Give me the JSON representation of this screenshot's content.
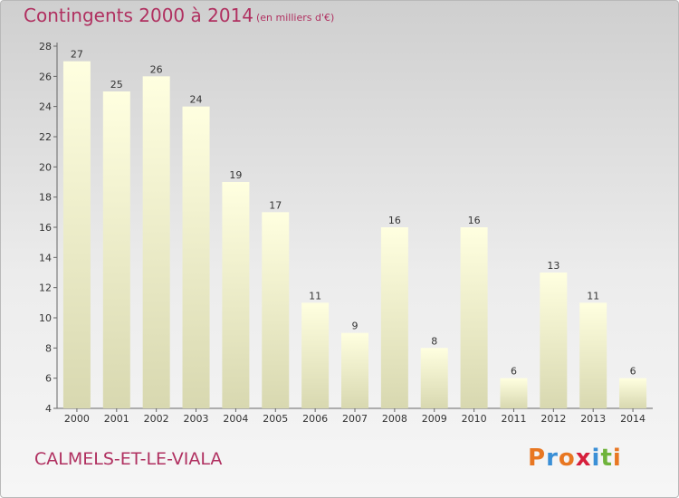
{
  "header": {
    "title": "Contingents 2000 à 2014",
    "unit": "(en milliers d'€)"
  },
  "footer": {
    "commune": "CALMELS-ET-LE-VIALA",
    "logo_text": "Proxiti"
  },
  "colors": {
    "title": "#b03060",
    "bar_top": "#ffffe0",
    "bar_bottom": "#d8d8b0",
    "logo": [
      "#e87722",
      "#3a8fd6",
      "#e87722",
      "#d61f3c",
      "#3a8fd6",
      "#6fb33b",
      "#e87722"
    ]
  },
  "chart_data": {
    "type": "bar",
    "title": "Contingents 2000 à 2014",
    "subtitle": "(en milliers d'€)",
    "xlabel": "",
    "ylabel": "",
    "categories": [
      "2000",
      "2001",
      "2002",
      "2003",
      "2004",
      "2005",
      "2006",
      "2007",
      "2008",
      "2009",
      "2010",
      "2011",
      "2012",
      "2013",
      "2014"
    ],
    "values": [
      27,
      25,
      26,
      24,
      19,
      17,
      11,
      9,
      16,
      8,
      16,
      6,
      13,
      11,
      6
    ],
    "ylim": [
      4,
      28
    ],
    "yticks": [
      4,
      6,
      8,
      10,
      12,
      14,
      16,
      18,
      20,
      22,
      24,
      26,
      28
    ],
    "grid": false,
    "legend": "none"
  }
}
